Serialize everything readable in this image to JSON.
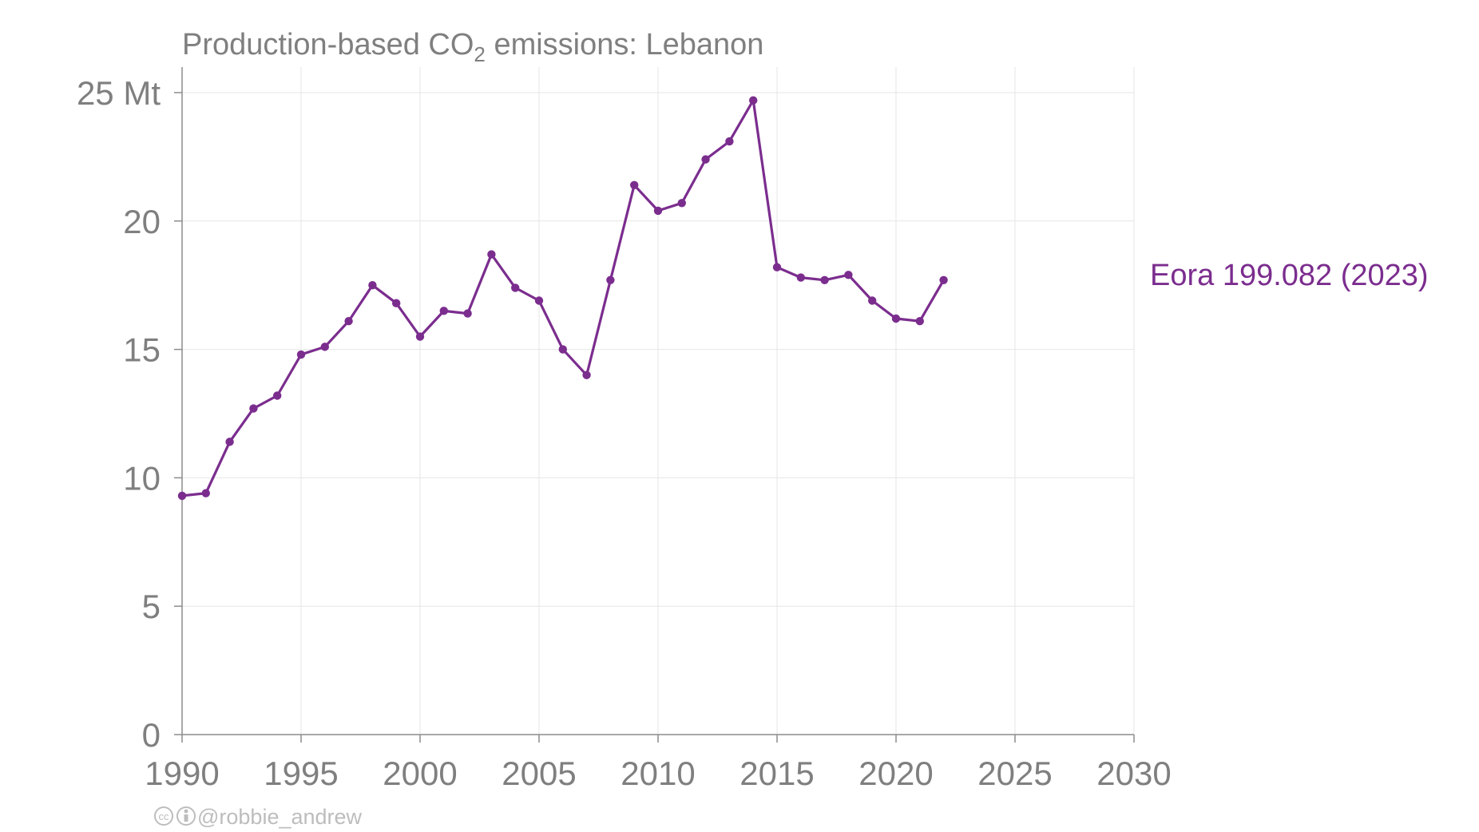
{
  "title": {
    "prefix": "Production-based CO",
    "subscript": "2",
    "suffix": " emissions: Lebanon"
  },
  "credit": {
    "handle": "@robbie_andrew",
    "icons": [
      "cc-icon",
      "by-icon"
    ]
  },
  "series_label": "Eora 199.082 (2023)",
  "colors": {
    "series": "#7b2d8e",
    "axis_text": "#7f7f7f",
    "grid": "#e6e6e6",
    "credit": "#bdbdbd"
  },
  "chart_data": {
    "type": "line",
    "title": "Production-based CO2 emissions: Lebanon",
    "xlabel": "",
    "ylabel": "",
    "xlim": [
      1990,
      2030
    ],
    "ylim": [
      0,
      26
    ],
    "grid": true,
    "x_ticks": [
      1990,
      1995,
      2000,
      2005,
      2010,
      2015,
      2020,
      2025,
      2030
    ],
    "x_tick_labels": [
      "1990",
      "1995",
      "2000",
      "2005",
      "2010",
      "2015",
      "2020",
      "2025",
      "2030"
    ],
    "y_ticks": [
      0,
      5,
      10,
      15,
      20,
      25
    ],
    "y_tick_labels": [
      "0",
      "5",
      "10",
      "15",
      "20",
      "25 Mt"
    ],
    "series": [
      {
        "name": "Eora 199.082 (2023)",
        "color": "#7b2d8e",
        "x": [
          1990,
          1991,
          1992,
          1993,
          1994,
          1995,
          1996,
          1997,
          1998,
          1999,
          2000,
          2001,
          2002,
          2003,
          2004,
          2005,
          2006,
          2007,
          2008,
          2009,
          2010,
          2011,
          2012,
          2013,
          2014,
          2015,
          2016,
          2017,
          2018,
          2019,
          2020,
          2021,
          2022
        ],
        "values": [
          9.3,
          9.4,
          11.4,
          12.7,
          13.2,
          14.8,
          15.1,
          16.1,
          17.5,
          16.8,
          15.5,
          16.5,
          16.4,
          18.7,
          17.4,
          16.9,
          15.0,
          14.0,
          17.7,
          21.4,
          20.4,
          20.7,
          22.4,
          23.1,
          24.7,
          18.2,
          17.8,
          17.7,
          17.9,
          16.9,
          16.2,
          16.1,
          17.7
        ]
      }
    ]
  }
}
